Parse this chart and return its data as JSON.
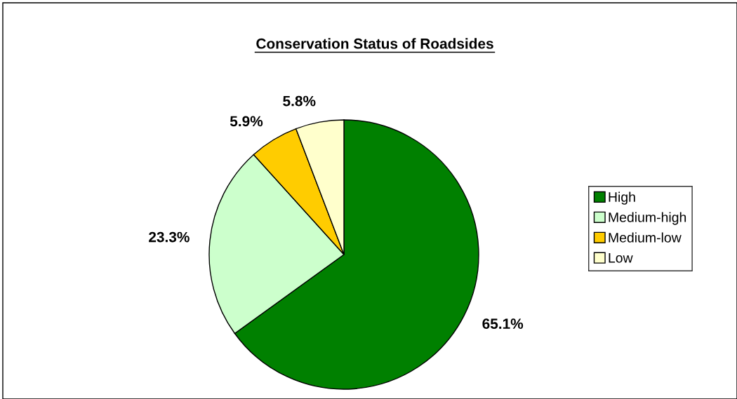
{
  "chart_data": {
    "type": "pie",
    "title": "Conservation Status of Roadsides",
    "categories": [
      "High",
      "Medium-high",
      "Medium-low",
      "Low"
    ],
    "values": [
      65.1,
      23.3,
      5.9,
      5.8
    ],
    "value_labels": [
      "65.1%",
      "23.3%",
      "5.9%",
      "5.8%"
    ],
    "colors": [
      "#008000",
      "#ccffcc",
      "#ffcc00",
      "#ffffcc"
    ],
    "legend": "right"
  }
}
